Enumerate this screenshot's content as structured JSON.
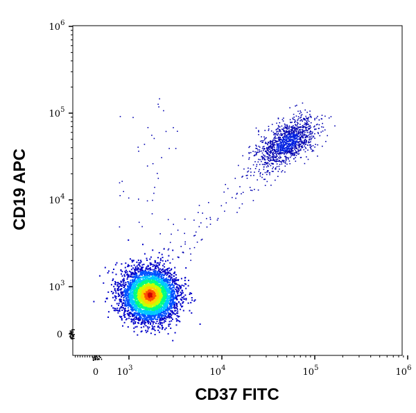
{
  "chart_data": {
    "type": "scatter",
    "subtype": "density-dot-plot",
    "xlabel": "CD37 FITC",
    "ylabel": "CD19 APC",
    "x_scale": "biexponential",
    "y_scale": "biexponential",
    "xlim": [
      -500,
      1000000
    ],
    "ylim": [
      -500,
      1000000
    ],
    "x_ticks": [
      {
        "value": 0,
        "base": "0",
        "exp": ""
      },
      {
        "value": 1000,
        "base": "10",
        "exp": "3"
      },
      {
        "value": 10000,
        "base": "10",
        "exp": "4"
      },
      {
        "value": 100000,
        "base": "10",
        "exp": "5"
      },
      {
        "value": 1000000,
        "base": "10",
        "exp": "6"
      }
    ],
    "y_ticks": [
      {
        "value": 0,
        "base": "0",
        "exp": ""
      },
      {
        "value": 1000,
        "base": "10",
        "exp": "3"
      },
      {
        "value": 10000,
        "base": "10",
        "exp": "4"
      },
      {
        "value": 100000,
        "base": "10",
        "exp": "5"
      },
      {
        "value": 1000000,
        "base": "10",
        "exp": "6"
      }
    ],
    "grid": false,
    "populations": [
      {
        "name_hint": "CD37 low / CD19 low",
        "center_x": 1650,
        "center_y": 830,
        "spread_decades": 0.13,
        "relative_density": "high"
      },
      {
        "name_hint": "CD37 high / CD19 high",
        "center_x": 50000,
        "center_y": 46000,
        "spread_decades": 0.17,
        "relative_density": "low"
      }
    ],
    "colormap": [
      "#0000c8",
      "#0050ff",
      "#00c8ff",
      "#00ff80",
      "#c8ff00",
      "#ffd000",
      "#ff5000",
      "#d00000"
    ]
  }
}
